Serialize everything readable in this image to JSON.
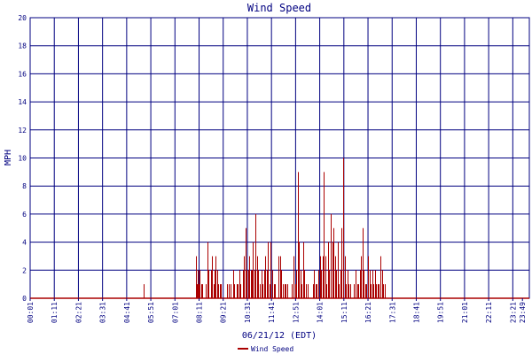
{
  "chart_data": {
    "type": "bar",
    "title": "Wind Speed",
    "xlabel": "06/21/12 (EDT)",
    "ylabel": "MPH",
    "ylim": [
      0,
      20
    ],
    "yticks": [
      0,
      2,
      4,
      6,
      8,
      10,
      12,
      14,
      16,
      18,
      20
    ],
    "xlim_minutes": [
      1,
      1449
    ],
    "xticks": [
      "00:01",
      "01:11",
      "02:21",
      "03:31",
      "04:41",
      "05:51",
      "07:01",
      "08:11",
      "09:21",
      "10:31",
      "11:41",
      "12:51",
      "14:01",
      "15:11",
      "16:21",
      "17:31",
      "18:41",
      "19:51",
      "21:01",
      "22:11",
      "23:21",
      "23:49"
    ],
    "grid": true,
    "series": [
      {
        "name": "Wind Speed",
        "color": "#aa0000",
        "points": [
          [
            "05:31",
            1
          ],
          [
            "05:33",
            0
          ],
          [
            "08:01",
            3
          ],
          [
            "08:03",
            2
          ],
          [
            "08:05",
            1
          ],
          [
            "08:07",
            2
          ],
          [
            "08:09",
            1
          ],
          [
            "08:13",
            2
          ],
          [
            "08:17",
            1
          ],
          [
            "08:21",
            1
          ],
          [
            "08:31",
            1
          ],
          [
            "08:35",
            4
          ],
          [
            "08:39",
            2
          ],
          [
            "08:45",
            2
          ],
          [
            "08:49",
            3
          ],
          [
            "08:53",
            1
          ],
          [
            "08:57",
            2
          ],
          [
            "08:59",
            3
          ],
          [
            "09:03",
            2
          ],
          [
            "09:07",
            1
          ],
          [
            "09:11",
            1
          ],
          [
            "09:15",
            1
          ],
          [
            "09:31",
            1
          ],
          [
            "09:37",
            1
          ],
          [
            "09:43",
            1
          ],
          [
            "09:49",
            2
          ],
          [
            "09:53",
            1
          ],
          [
            "09:59",
            1
          ],
          [
            "10:03",
            1
          ],
          [
            "10:09",
            2
          ],
          [
            "10:11",
            1
          ],
          [
            "10:17",
            2
          ],
          [
            "10:21",
            3
          ],
          [
            "10:25",
            5
          ],
          [
            "10:29",
            2
          ],
          [
            "10:33",
            2
          ],
          [
            "10:37",
            3
          ],
          [
            "10:41",
            2
          ],
          [
            "10:45",
            2
          ],
          [
            "10:47",
            4
          ],
          [
            "10:51",
            2
          ],
          [
            "10:55",
            6
          ],
          [
            "10:59",
            3
          ],
          [
            "11:03",
            2
          ],
          [
            "11:07",
            1
          ],
          [
            "11:11",
            2
          ],
          [
            "11:15",
            1
          ],
          [
            "11:19",
            2
          ],
          [
            "11:23",
            3
          ],
          [
            "11:27",
            2
          ],
          [
            "11:31",
            4
          ],
          [
            "11:35",
            1
          ],
          [
            "11:39",
            4
          ],
          [
            "11:43",
            2
          ],
          [
            "11:47",
            1
          ],
          [
            "11:51",
            1
          ],
          [
            "12:01",
            3
          ],
          [
            "12:05",
            3
          ],
          [
            "12:09",
            2
          ],
          [
            "12:13",
            1
          ],
          [
            "12:19",
            1
          ],
          [
            "12:23",
            1
          ],
          [
            "12:27",
            1
          ],
          [
            "12:41",
            1
          ],
          [
            "12:45",
            3
          ],
          [
            "12:49",
            1
          ],
          [
            "12:53",
            2
          ],
          [
            "12:57",
            9
          ],
          [
            "13:01",
            4
          ],
          [
            "13:05",
            2
          ],
          [
            "13:09",
            1
          ],
          [
            "13:13",
            4
          ],
          [
            "13:17",
            2
          ],
          [
            "13:21",
            1
          ],
          [
            "13:25",
            1
          ],
          [
            "13:41",
            1
          ],
          [
            "13:45",
            2
          ],
          [
            "13:49",
            1
          ],
          [
            "13:53",
            1
          ],
          [
            "13:57",
            2
          ],
          [
            "14:01",
            3
          ],
          [
            "14:05",
            2
          ],
          [
            "14:09",
            3
          ],
          [
            "14:13",
            9
          ],
          [
            "14:17",
            3
          ],
          [
            "14:21",
            1
          ],
          [
            "14:25",
            4
          ],
          [
            "14:29",
            2
          ],
          [
            "14:33",
            6
          ],
          [
            "14:37",
            4
          ],
          [
            "14:41",
            5
          ],
          [
            "14:45",
            3
          ],
          [
            "14:49",
            2
          ],
          [
            "14:53",
            4
          ],
          [
            "14:57",
            1
          ],
          [
            "15:01",
            2
          ],
          [
            "15:05",
            5
          ],
          [
            "15:09",
            10
          ],
          [
            "15:13",
            3
          ],
          [
            "15:17",
            1
          ],
          [
            "15:21",
            2
          ],
          [
            "15:25",
            1
          ],
          [
            "15:29",
            1
          ],
          [
            "15:41",
            1
          ],
          [
            "15:45",
            2
          ],
          [
            "15:49",
            1
          ],
          [
            "15:53",
            1
          ],
          [
            "15:57",
            2
          ],
          [
            "16:01",
            3
          ],
          [
            "16:05",
            5
          ],
          [
            "16:09",
            2
          ],
          [
            "16:13",
            1
          ],
          [
            "16:17",
            1
          ],
          [
            "16:21",
            3
          ],
          [
            "16:25",
            2
          ],
          [
            "16:29",
            1
          ],
          [
            "16:33",
            2
          ],
          [
            "16:37",
            1
          ],
          [
            "16:41",
            2
          ],
          [
            "16:45",
            1
          ],
          [
            "16:49",
            1
          ],
          [
            "16:53",
            1
          ],
          [
            "16:57",
            3
          ],
          [
            "17:01",
            2
          ],
          [
            "17:05",
            1
          ],
          [
            "17:09",
            1
          ]
        ]
      }
    ],
    "legend": {
      "position": "bottom-center",
      "entries": [
        "Wind Speed"
      ]
    }
  }
}
